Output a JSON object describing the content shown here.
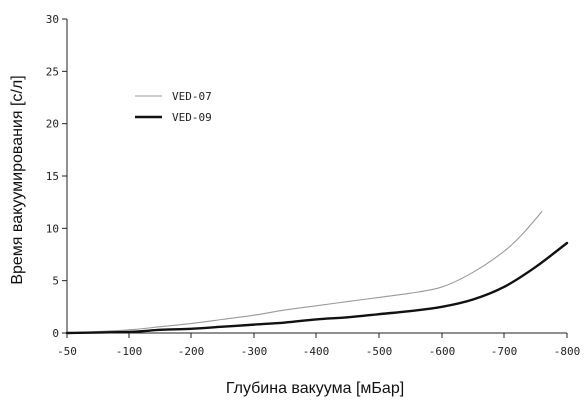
{
  "chart_data": {
    "type": "line",
    "title": "",
    "xlabel": "Глубина вакуума [мБар]",
    "ylabel": "Время вакуумирования [с/л]",
    "x_ticks": [
      {
        "value": -50,
        "label": "-50"
      },
      {
        "value": -100,
        "label": "-100"
      },
      {
        "value": -200,
        "label": "-200"
      },
      {
        "value": -300,
        "label": "-300"
      },
      {
        "value": -400,
        "label": "-400"
      },
      {
        "value": -500,
        "label": "-500"
      },
      {
        "value": -600,
        "label": "-600"
      },
      {
        "value": -700,
        "label": "-700"
      },
      {
        "value": -800,
        "label": "-800"
      }
    ],
    "y_ticks": [
      {
        "value": 0,
        "label": "0"
      },
      {
        "value": 5,
        "label": "5"
      },
      {
        "value": 10,
        "label": "10"
      },
      {
        "value": 15,
        "label": "15"
      },
      {
        "value": 20,
        "label": "20"
      },
      {
        "value": 25,
        "label": "25"
      },
      {
        "value": 30,
        "label": "30"
      }
    ],
    "ylim": [
      0,
      30
    ],
    "grid": false,
    "legend_position": "top-left",
    "series": [
      {
        "name": "VED-07",
        "color": "#9a9a9a",
        "style": "thin",
        "points": [
          [
            -50,
            0.0
          ],
          [
            -100,
            0.3
          ],
          [
            -150,
            0.6
          ],
          [
            -200,
            0.9
          ],
          [
            -250,
            1.3
          ],
          [
            -300,
            1.7
          ],
          [
            -350,
            2.2
          ],
          [
            -400,
            2.6
          ],
          [
            -450,
            3.0
          ],
          [
            -500,
            3.4
          ],
          [
            -550,
            3.8
          ],
          [
            -600,
            4.4
          ],
          [
            -650,
            5.8
          ],
          [
            -700,
            7.8
          ],
          [
            -730,
            9.5
          ],
          [
            -760,
            11.6
          ]
        ]
      },
      {
        "name": "VED-09",
        "color": "#111111",
        "style": "thick",
        "points": [
          [
            -50,
            0.0
          ],
          [
            -100,
            0.1
          ],
          [
            -150,
            0.3
          ],
          [
            -200,
            0.4
          ],
          [
            -250,
            0.6
          ],
          [
            -300,
            0.8
          ],
          [
            -350,
            1.0
          ],
          [
            -400,
            1.3
          ],
          [
            -450,
            1.5
          ],
          [
            -500,
            1.8
          ],
          [
            -550,
            2.1
          ],
          [
            -600,
            2.5
          ],
          [
            -650,
            3.2
          ],
          [
            -700,
            4.4
          ],
          [
            -750,
            6.3
          ],
          [
            -800,
            8.6
          ]
        ]
      }
    ]
  }
}
